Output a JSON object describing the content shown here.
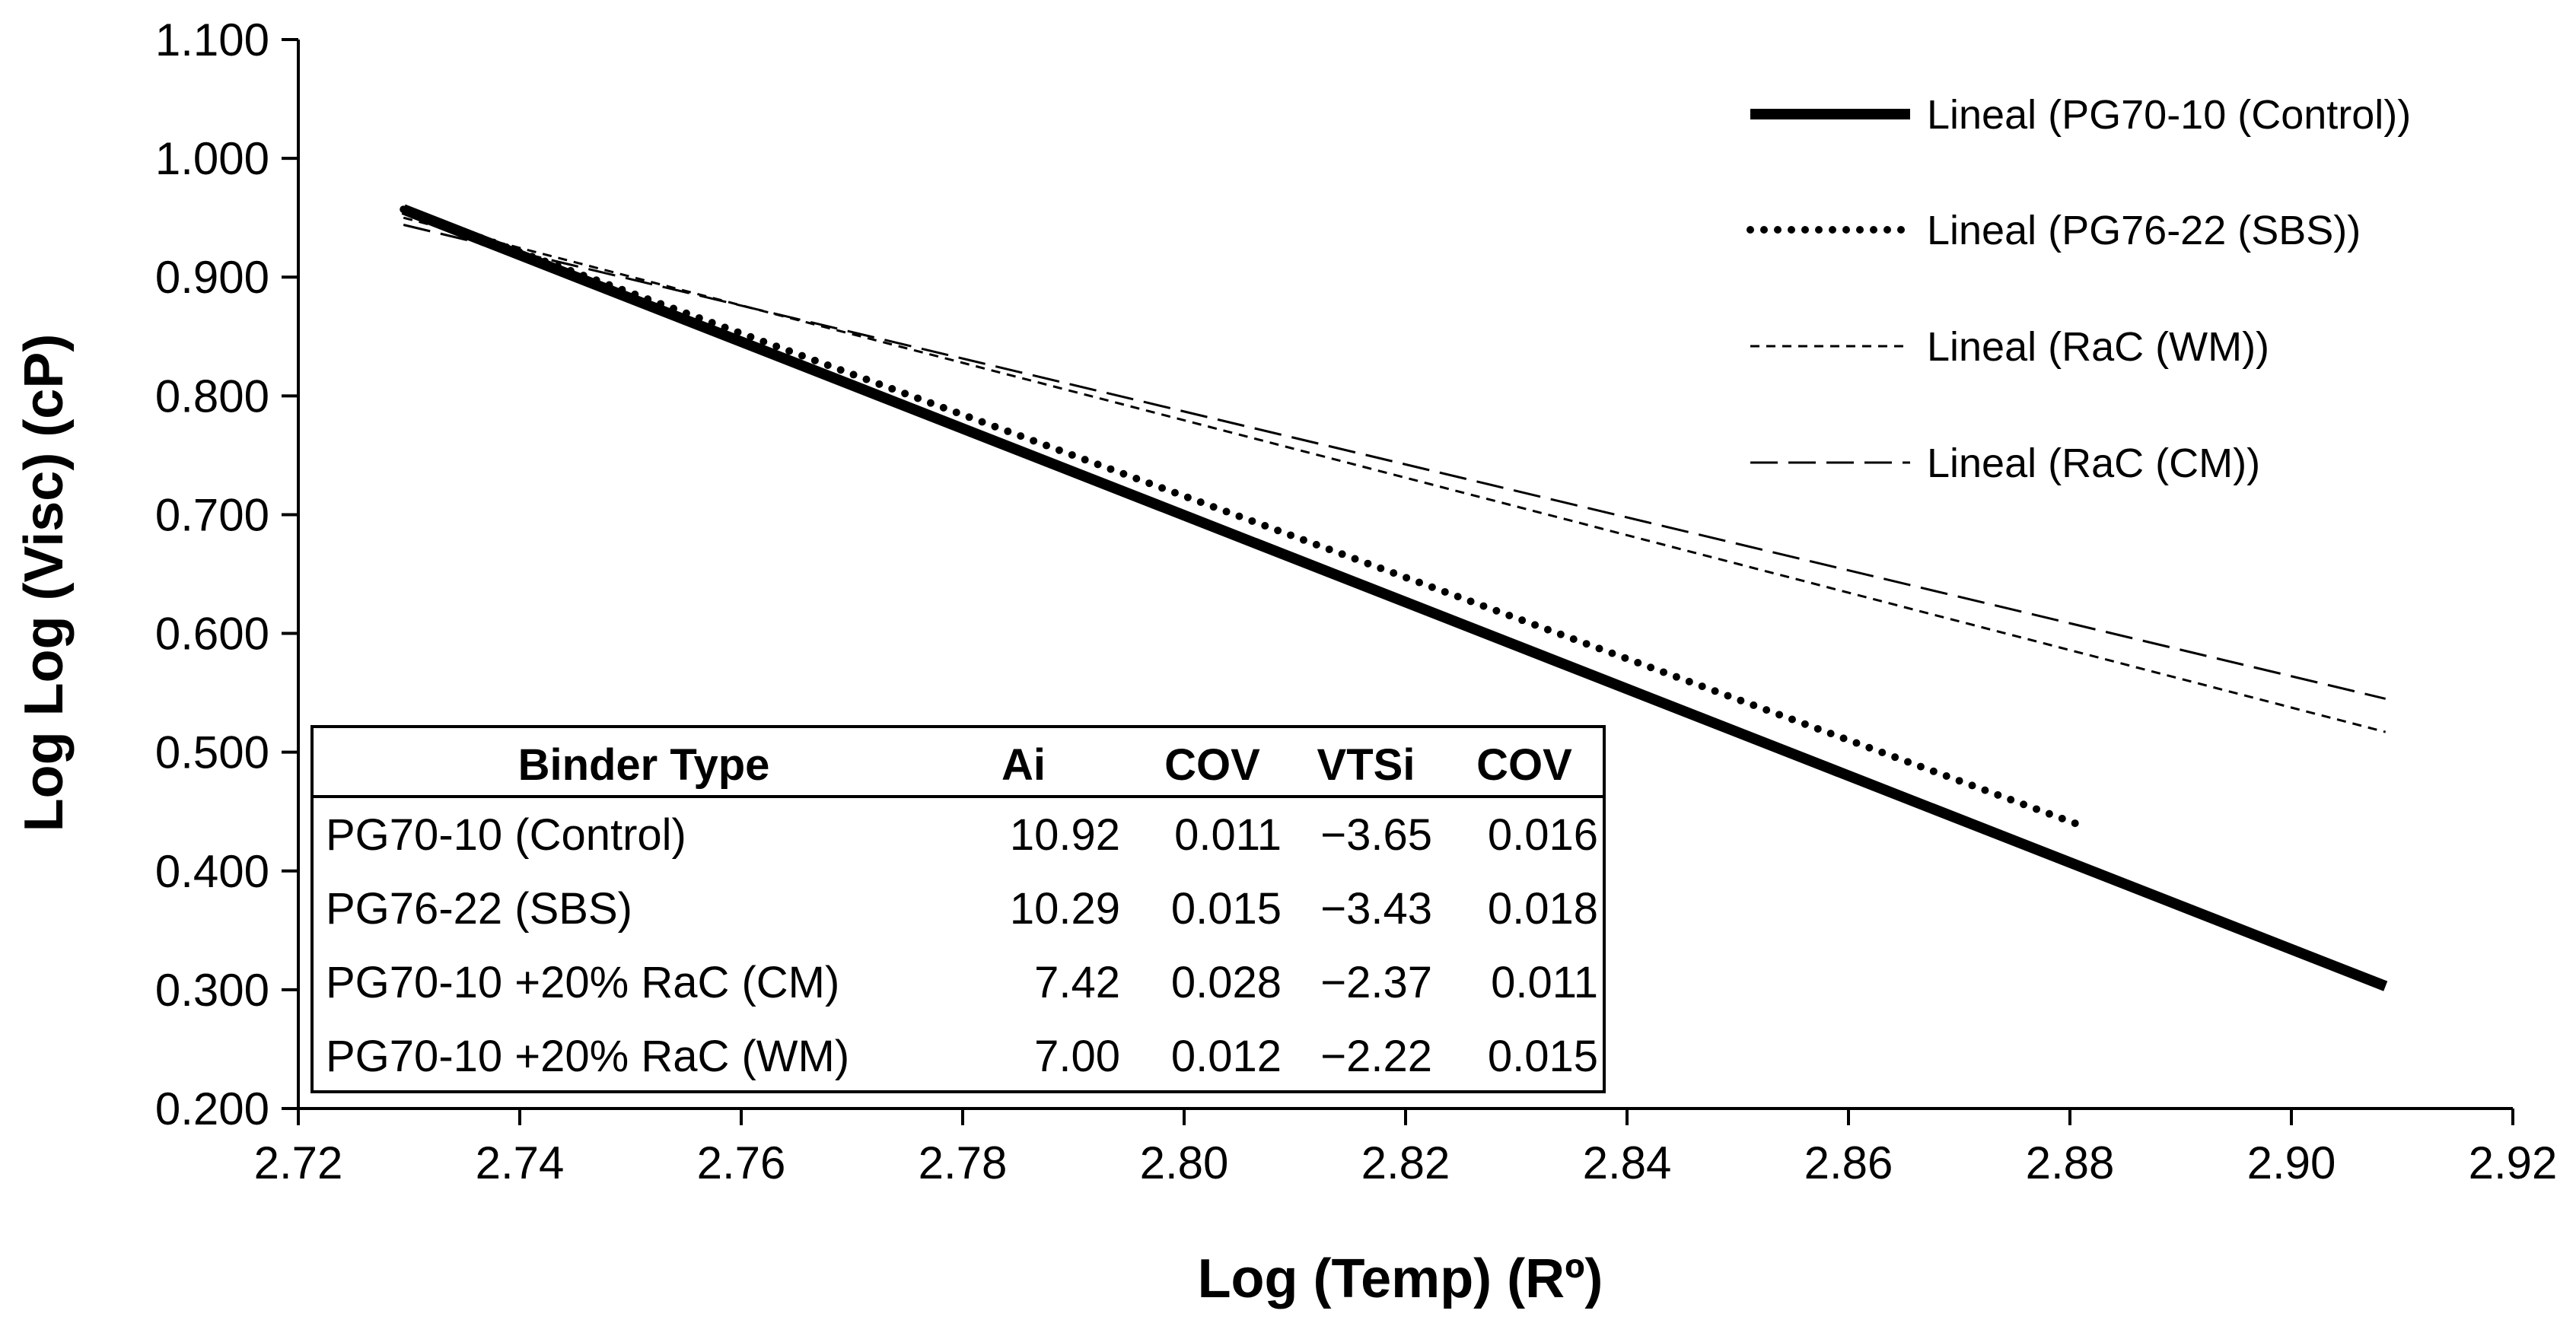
{
  "chart_data": {
    "type": "line",
    "title": "",
    "xlabel": "Log (Temp)  (Rº)",
    "ylabel": "Log Log (Visc)  (cP)",
    "xlim": [
      2.72,
      2.92
    ],
    "ylim": [
      0.2,
      1.1
    ],
    "x_ticks": [
      "2.72",
      "2.74",
      "2.76",
      "2.78",
      "2.80",
      "2.82",
      "2.84",
      "2.86",
      "2.88",
      "2.90",
      "2.92"
    ],
    "y_ticks": [
      "0.200",
      "0.300",
      "0.400",
      "0.500",
      "0.600",
      "0.700",
      "0.800",
      "0.900",
      "1.000",
      "1.100"
    ],
    "grid": false,
    "legend_position": "top-right",
    "series": [
      {
        "name": "Lineal (PG70-10 (Control))",
        "style": "solid-thick",
        "x": [
          2.7295,
          2.9085
        ],
        "y": [
          0.957,
          0.303
        ]
      },
      {
        "name": "Lineal (PG76-22 (SBS))",
        "style": "dotted",
        "x": [
          2.7295,
          2.8805
        ],
        "y": [
          0.957,
          0.44
        ]
      },
      {
        "name": "Lineal (RaC (WM))",
        "style": "short-dash",
        "x": [
          2.7295,
          2.9085
        ],
        "y": [
          0.95,
          0.517
        ]
      },
      {
        "name": "Lineal (RaC (CM))",
        "style": "long-dash",
        "x": [
          2.7295,
          2.9085
        ],
        "y": [
          0.944,
          0.545
        ]
      }
    ],
    "table": {
      "headers": [
        "Binder Type",
        "Ai",
        "COV",
        "VTSi",
        "COV"
      ],
      "rows": [
        [
          "PG70-10 (Control)",
          "10.92",
          "0.011",
          "−3.65",
          "0.016"
        ],
        [
          "PG76-22 (SBS)",
          "10.29",
          "0.015",
          "−3.43",
          "0.018"
        ],
        [
          "PG70-10 +20% RaC (CM)",
          "7.42",
          "0.028",
          "−2.37",
          "0.011"
        ],
        [
          "PG70-10 +20% RaC (WM)",
          "7.00",
          "0.012",
          "−2.22",
          "0.015"
        ]
      ]
    }
  }
}
